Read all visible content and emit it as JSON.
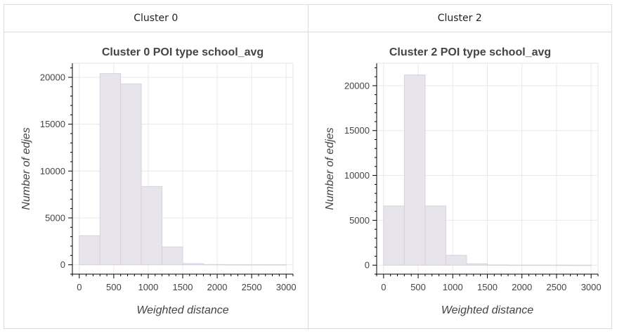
{
  "tabs": [
    {
      "label": "Cluster 0"
    },
    {
      "label": "Cluster 2"
    }
  ],
  "chart_data": [
    {
      "type": "bar",
      "title": "Cluster 0 POI type school_avg",
      "xlabel": "Weighted distance",
      "ylabel": "Number of edjes",
      "bins": [
        {
          "x0": 0,
          "x1": 300,
          "value": 3100
        },
        {
          "x0": 300,
          "x1": 600,
          "value": 20400
        },
        {
          "x0": 600,
          "x1": 900,
          "value": 19300
        },
        {
          "x0": 900,
          "x1": 1200,
          "value": 8350
        },
        {
          "x0": 1200,
          "x1": 1500,
          "value": 1900
        },
        {
          "x0": 1500,
          "x1": 1800,
          "value": 130
        },
        {
          "x0": 1800,
          "x1": 2100,
          "value": 30
        },
        {
          "x0": 2100,
          "x1": 2400,
          "value": 10
        },
        {
          "x0": 2400,
          "x1": 2700,
          "value": 5
        },
        {
          "x0": 2700,
          "x1": 3000,
          "value": 3
        }
      ],
      "xlim": [
        -100,
        3100
      ],
      "ylim": [
        -1000,
        21500
      ],
      "xticks": [
        0,
        500,
        1000,
        1500,
        2000,
        2500,
        3000
      ],
      "yticks": [
        0,
        5000,
        10000,
        15000,
        20000
      ],
      "grid": true,
      "bar_color": "#e8e4ec"
    },
    {
      "type": "bar",
      "title": "Cluster 2 POI type school_avg",
      "xlabel": "Weighted distance",
      "ylabel": "Number of edjes",
      "bins": [
        {
          "x0": 0,
          "x1": 300,
          "value": 6600
        },
        {
          "x0": 300,
          "x1": 600,
          "value": 21200
        },
        {
          "x0": 600,
          "x1": 900,
          "value": 6600
        },
        {
          "x0": 900,
          "x1": 1200,
          "value": 1100
        },
        {
          "x0": 1200,
          "x1": 1500,
          "value": 150
        },
        {
          "x0": 1500,
          "x1": 1800,
          "value": 30
        },
        {
          "x0": 1800,
          "x1": 2100,
          "value": 10
        },
        {
          "x0": 2100,
          "x1": 2400,
          "value": 5
        },
        {
          "x0": 2400,
          "x1": 2700,
          "value": 3
        },
        {
          "x0": 2700,
          "x1": 3000,
          "value": 2
        }
      ],
      "xlim": [
        -100,
        3100
      ],
      "ylim": [
        -1000,
        22500
      ],
      "xticks": [
        0,
        500,
        1000,
        1500,
        2000,
        2500,
        3000
      ],
      "yticks": [
        0,
        5000,
        10000,
        15000,
        20000
      ],
      "grid": true,
      "bar_color": "#e8e4ec"
    }
  ]
}
